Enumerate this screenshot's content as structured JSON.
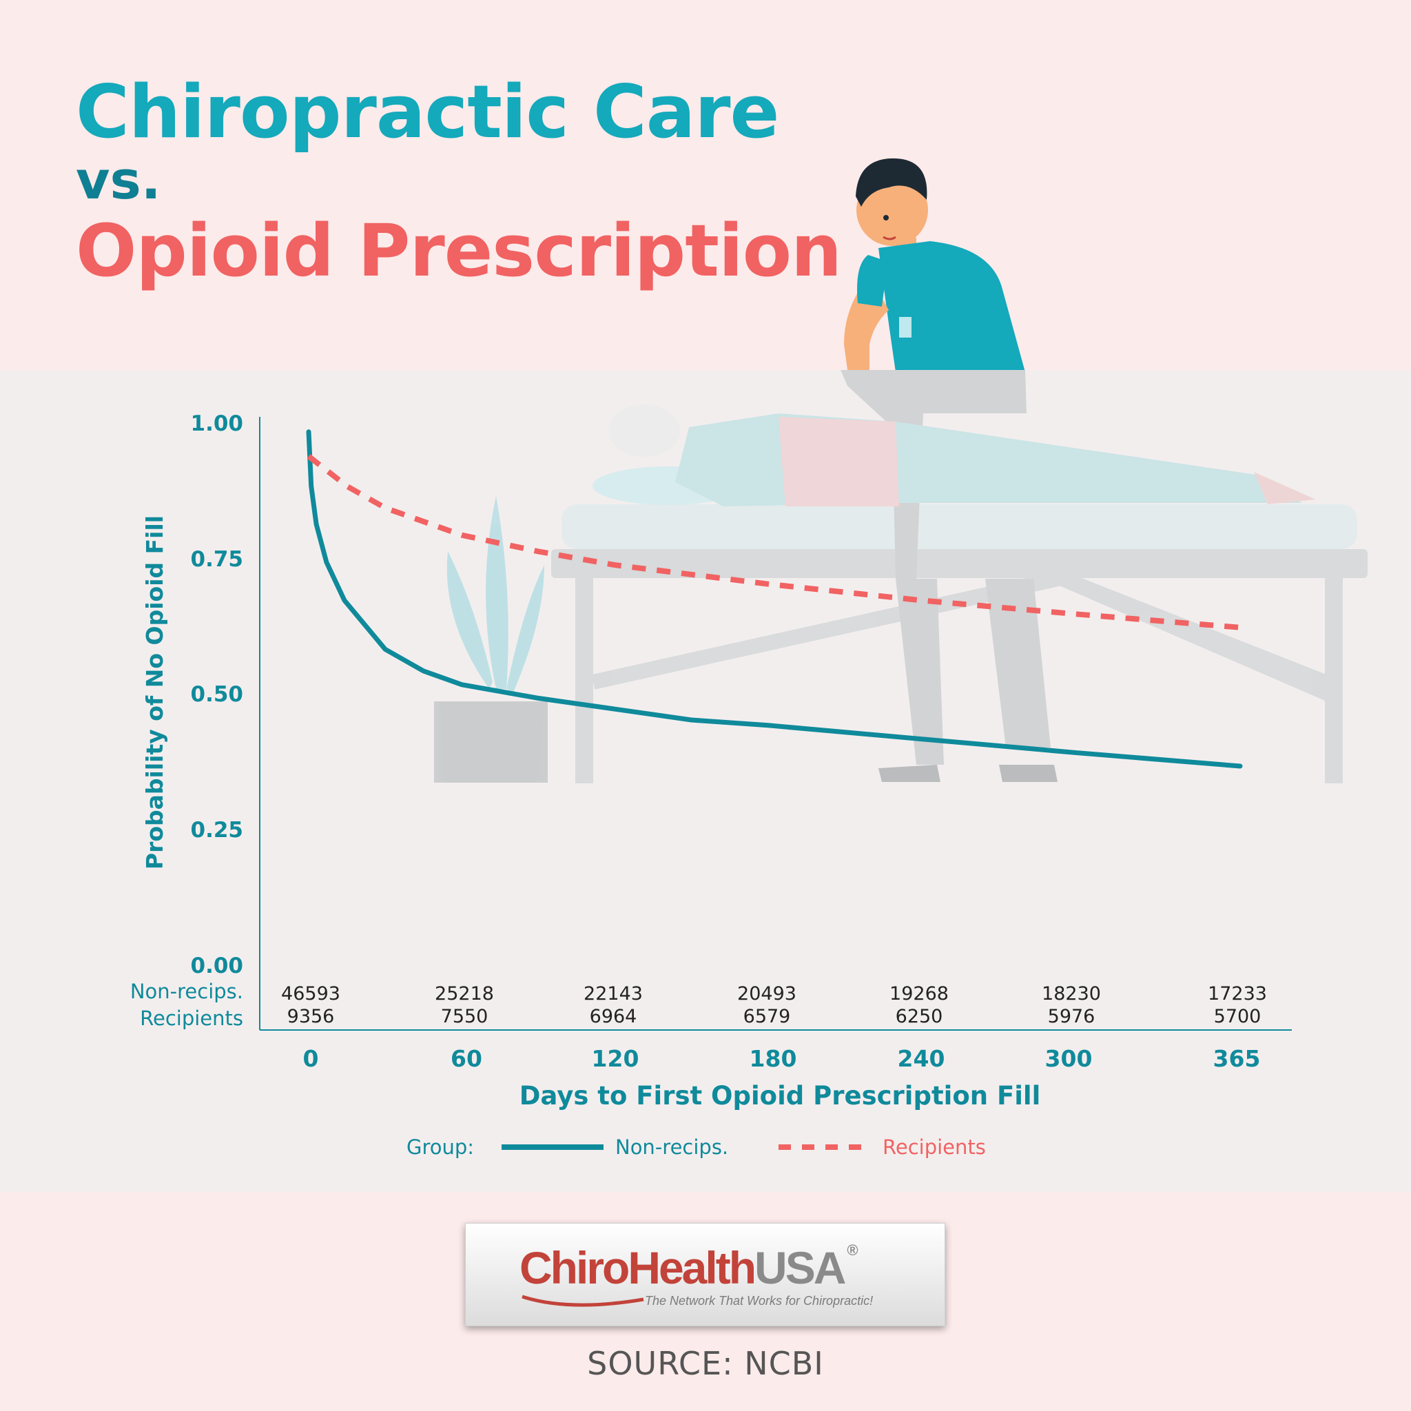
{
  "title": {
    "line1": "Chiropractic Care",
    "line2": "vs.",
    "line3": "Opioid Prescription"
  },
  "chart_data": {
    "type": "line",
    "xlabel": "Days to First Opioid Prescription Fill",
    "ylabel": "Probability of No Opioid Fill",
    "ylim": [
      0,
      1
    ],
    "xlim": [
      0,
      365
    ],
    "y_ticks": [
      "1.00",
      "0.75",
      "0.50",
      "0.25",
      "0.00"
    ],
    "x_ticks": [
      "0",
      "60",
      "120",
      "180",
      "240",
      "300",
      "365"
    ],
    "grid": false,
    "legend": {
      "title": "Group:",
      "placement": "bottom-center"
    },
    "risk_table": {
      "row_labels": [
        "Non-recips.",
        "Recipients"
      ],
      "non_recips": [
        "46593",
        "25218",
        "22143",
        "20493",
        "19268",
        "18230",
        "17233"
      ],
      "recipients": [
        "9356",
        "7550",
        "6964",
        "6579",
        "6250",
        "5976",
        "5700"
      ]
    },
    "series": [
      {
        "name": "Non-recips.",
        "color": "#0f8a9b",
        "style": "solid",
        "x": [
          0,
          1,
          3,
          7,
          14,
          30,
          45,
          60,
          90,
          120,
          150,
          180,
          240,
          300,
          365
        ],
        "y": [
          0.98,
          0.88,
          0.81,
          0.74,
          0.67,
          0.58,
          0.54,
          0.515,
          0.49,
          0.47,
          0.45,
          0.44,
          0.415,
          0.39,
          0.365
        ]
      },
      {
        "name": "Recipients",
        "color": "#f16262",
        "style": "dashed",
        "x": [
          0,
          15,
          30,
          60,
          90,
          120,
          180,
          240,
          300,
          365
        ],
        "y": [
          0.935,
          0.88,
          0.84,
          0.79,
          0.76,
          0.735,
          0.7,
          0.67,
          0.645,
          0.62
        ]
      }
    ]
  },
  "logo": {
    "brand_part1": "ChiroHealth",
    "brand_part2": "USA",
    "registered": "®",
    "tagline": "The Network That Works for Chiropractic!"
  },
  "source": "SOURCE: NCBI"
}
